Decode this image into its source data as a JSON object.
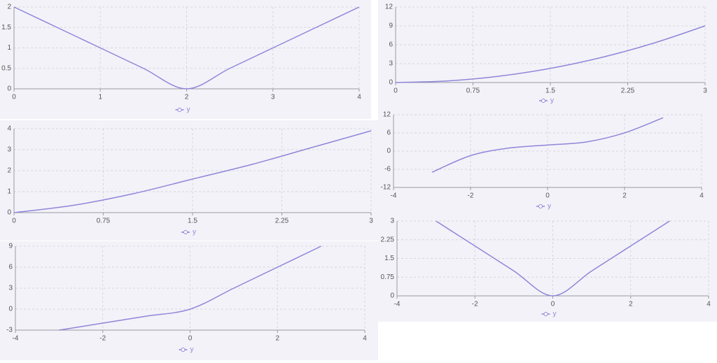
{
  "chart_data": [
    {
      "type": "line",
      "x": [
        0,
        0.5,
        1,
        1.5,
        2,
        2.5,
        3,
        3.5,
        4
      ],
      "series": [
        {
          "name": "y",
          "color": "#8f86d9",
          "values": [
            2,
            1.5,
            1,
            0.5,
            0,
            0.5,
            1,
            1.5,
            2
          ]
        }
      ],
      "xlim": [
        0,
        4
      ],
      "xticks": [
        0,
        1,
        2,
        3,
        4
      ],
      "ylim": [
        0,
        2
      ],
      "yticks": [
        0,
        0.5,
        1,
        1.5,
        2
      ],
      "grid": true
    },
    {
      "type": "line",
      "x": [
        0,
        0.5,
        1,
        1.5,
        2,
        2.5,
        3
      ],
      "series": [
        {
          "name": "y",
          "color": "#8f86d9",
          "values": [
            0,
            0.25,
            1,
            2.25,
            4,
            6.25,
            9
          ]
        }
      ],
      "xlim": [
        0,
        3
      ],
      "xticks": [
        0,
        0.75,
        1.5,
        2.25,
        3
      ],
      "ylim": [
        0,
        12
      ],
      "yticks": [
        0,
        3,
        6,
        9,
        12
      ],
      "grid": true
    },
    {
      "type": "line",
      "x": [
        0,
        0.5,
        1,
        1.5,
        2,
        2.5,
        3
      ],
      "series": [
        {
          "name": "y",
          "color": "#8f86d9",
          "values": [
            0,
            0.35,
            0.9,
            1.6,
            2.3,
            3.1,
            3.9
          ]
        }
      ],
      "xlim": [
        0,
        3
      ],
      "xticks": [
        0,
        0.75,
        1.5,
        2.25,
        3
      ],
      "ylim": [
        0,
        4
      ],
      "yticks": [
        0,
        1,
        2,
        3,
        4
      ],
      "grid": true
    },
    {
      "type": "line",
      "x": [
        -3,
        -2,
        -1,
        0,
        1,
        2,
        3
      ],
      "series": [
        {
          "name": "y",
          "color": "#8f86d9",
          "values": [
            -7,
            -1.5,
            1,
            2,
            3,
            6,
            11
          ]
        }
      ],
      "xlim": [
        -4,
        4
      ],
      "xticks": [
        -4,
        -2,
        0,
        2,
        4
      ],
      "ylim": [
        -12,
        12
      ],
      "yticks": [
        -12,
        -6,
        0,
        6,
        12
      ],
      "grid": true
    },
    {
      "type": "line",
      "x": [
        -3,
        -2,
        -1,
        0,
        1,
        2,
        3
      ],
      "series": [
        {
          "name": "y",
          "color": "#8f86d9",
          "values": [
            -3,
            -2,
            -1,
            0,
            3,
            6,
            9
          ]
        }
      ],
      "xlim": [
        -4,
        4
      ],
      "xticks": [
        -4,
        -2,
        0,
        2,
        4
      ],
      "ylim": [
        -3,
        9
      ],
      "yticks": [
        -3,
        0,
        3,
        6,
        9
      ],
      "grid": true
    },
    {
      "type": "line",
      "x": [
        -3,
        -2,
        -1,
        0,
        1,
        2,
        3
      ],
      "series": [
        {
          "name": "y",
          "color": "#8f86d9",
          "values": [
            3,
            2,
            1,
            0,
            1,
            2,
            3
          ]
        }
      ],
      "xlim": [
        -4,
        4
      ],
      "xticks": [
        -4,
        -2,
        0,
        2,
        4
      ],
      "ylim": [
        0,
        3
      ],
      "yticks": [
        0,
        0.75,
        1.5,
        2.25,
        3
      ],
      "grid": true
    }
  ]
}
